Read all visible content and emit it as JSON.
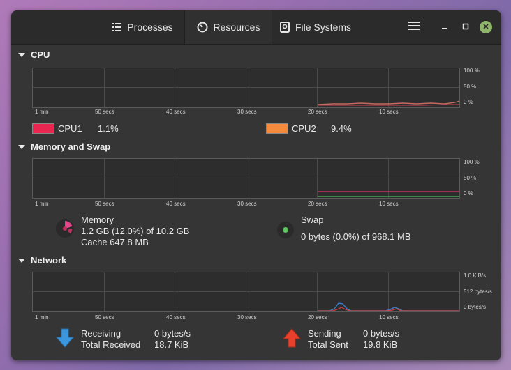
{
  "tabs": [
    {
      "label": "Processes",
      "icon": "list-icon"
    },
    {
      "label": "Resources",
      "icon": "gauge-icon"
    },
    {
      "label": "File Systems",
      "icon": "disk-icon"
    }
  ],
  "sections": {
    "cpu": {
      "title": "CPU"
    },
    "memory": {
      "title": "Memory and Swap"
    },
    "network": {
      "title": "Network"
    }
  },
  "x_ticks": [
    "1 min",
    "50 secs",
    "40 secs",
    "30 secs",
    "20 secs",
    "10 secs"
  ],
  "cpu_yticks": [
    "100 %",
    "50 %",
    "0 %"
  ],
  "mem_yticks": [
    "100 %",
    "50 %",
    "0 %"
  ],
  "net_yticks": [
    "1.0 KiB/s",
    "512 bytes/s",
    "0 bytes/s"
  ],
  "cpu": {
    "cpu1": {
      "label": "CPU1",
      "value": "1.1%",
      "color": "#e8264f"
    },
    "cpu2": {
      "label": "CPU2",
      "value": "9.4%",
      "color": "#f58a3c"
    }
  },
  "memory": {
    "label": "Memory",
    "line1": "1.2 GB (12.0%) of 10.2 GB",
    "line2": "Cache 647.8 MB",
    "color": "#d0306a"
  },
  "swap": {
    "label": "Swap",
    "line1": "0 bytes (0.0%) of 968.1 MB",
    "color": "#4caf50"
  },
  "network": {
    "receiving_label": "Receiving",
    "receiving_value": "0 bytes/s",
    "total_received_label": "Total Received",
    "total_received_value": "18.7 KiB",
    "sending_label": "Sending",
    "sending_value": "0 bytes/s",
    "total_sent_label": "Total Sent",
    "total_sent_value": "19.8 KiB"
  }
}
